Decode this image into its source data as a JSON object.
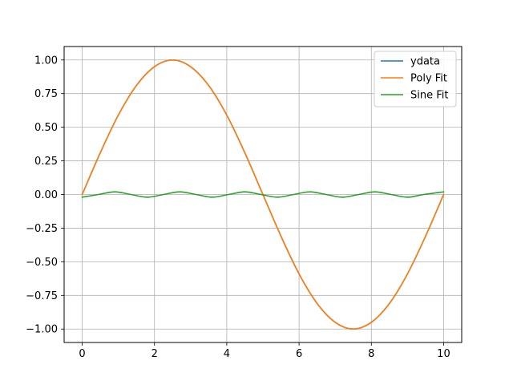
{
  "chart_data": {
    "type": "line",
    "title": "",
    "xlabel": "",
    "ylabel": "",
    "xlim": [
      -0.5,
      10.5
    ],
    "ylim": [
      -1.1,
      1.1
    ],
    "x_ticks": [
      0,
      2,
      4,
      6,
      8,
      10
    ],
    "x_tick_labels": [
      "0",
      "2",
      "4",
      "6",
      "8",
      "10"
    ],
    "y_ticks": [
      1.0,
      0.75,
      0.5,
      0.25,
      0.0,
      -0.25,
      -0.5,
      -0.75,
      -1.0
    ],
    "y_tick_labels": [
      "1.00",
      "0.75",
      "0.50",
      "0.25",
      "0.00",
      "−0.25",
      "−0.50",
      "−0.75",
      "−1.00"
    ],
    "grid": true,
    "legend_position": "top-right",
    "series": [
      {
        "name": "ydata",
        "color": "#1f77b4",
        "x": [
          0,
          0.5,
          1,
          1.5,
          2,
          2.5,
          3,
          3.5,
          4,
          4.5,
          5,
          5.5,
          6,
          6.5,
          7,
          7.5,
          8,
          8.5,
          9,
          9.5,
          10
        ],
        "y": [
          0,
          0.31,
          0.59,
          0.81,
          0.95,
          1.0,
          0.95,
          0.81,
          0.59,
          0.31,
          0,
          -0.31,
          -0.59,
          -0.81,
          -0.95,
          -1.0,
          -0.95,
          -0.81,
          -0.59,
          -0.31,
          0
        ]
      },
      {
        "name": "Poly Fit",
        "color": "#ff7f0e",
        "x": [
          0,
          0.5,
          1,
          1.5,
          2,
          2.5,
          3,
          3.5,
          4,
          4.5,
          5,
          5.5,
          6,
          6.5,
          7,
          7.5,
          8,
          8.5,
          9,
          9.5,
          10
        ],
        "y": [
          0,
          0.31,
          0.59,
          0.81,
          0.95,
          1.0,
          0.95,
          0.81,
          0.59,
          0.31,
          0,
          -0.31,
          -0.59,
          -0.81,
          -0.95,
          -1.0,
          -0.95,
          -0.81,
          -0.59,
          -0.31,
          0
        ]
      },
      {
        "name": "Sine Fit",
        "color": "#2ca02c",
        "x": [
          0,
          0.45,
          0.9,
          1.35,
          1.8,
          2.25,
          2.7,
          3.15,
          3.6,
          4.05,
          4.5,
          4.95,
          5.4,
          5.85,
          6.3,
          6.75,
          7.2,
          7.65,
          8.1,
          8.55,
          9.0,
          9.45,
          10.0
        ],
        "y": [
          -0.02,
          0.0,
          0.02,
          0.0,
          -0.02,
          0.0,
          0.02,
          0.0,
          -0.02,
          0.0,
          0.02,
          0.0,
          -0.02,
          0.0,
          0.02,
          0.0,
          -0.02,
          0.0,
          0.02,
          0.0,
          -0.02,
          0.0,
          0.02
        ]
      }
    ]
  }
}
